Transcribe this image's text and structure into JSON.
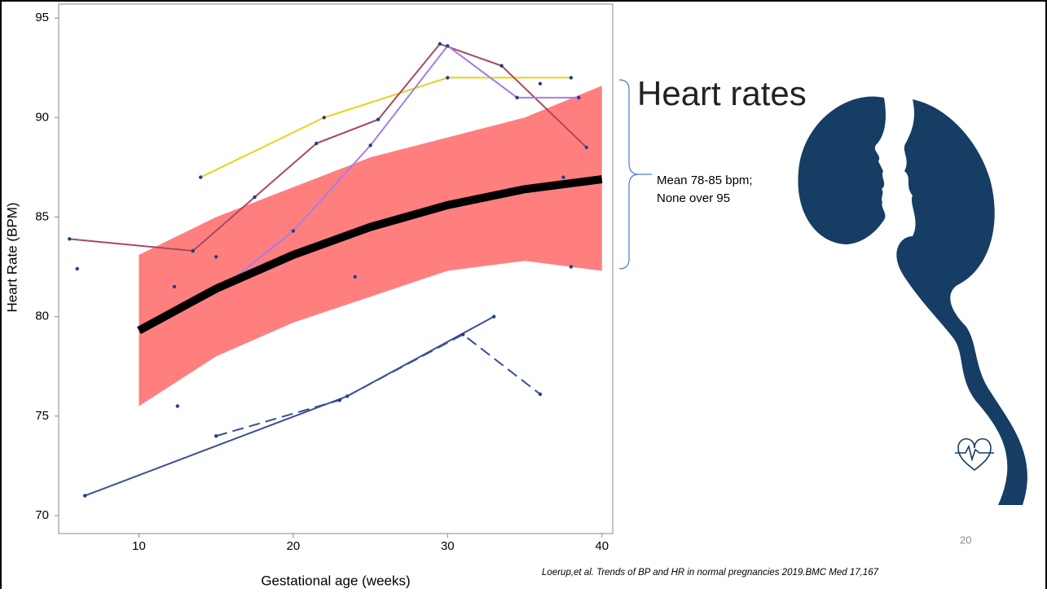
{
  "title": "Heart rates",
  "annotation": [
    "Mean 78-85 bpm;",
    "None over 95"
  ],
  "citation": "Loerup,et al. Trends of BP and HR in normal pregnancies 2019.BMC Med 17,167",
  "page_number": "20",
  "chart_data": {
    "type": "line",
    "x_label": "Gestational age (weeks)",
    "y_label": "Heart Rate (BPM)",
    "xlim": [
      4.8,
      40.7
    ],
    "ylim": [
      69.1,
      95.7
    ],
    "xticks": [
      10,
      20,
      30,
      40
    ],
    "yticks": [
      70,
      75,
      80,
      85,
      90,
      95
    ],
    "marker_color": "#1f3f8f",
    "series": [
      {
        "color": "#e8d21c",
        "dash": false,
        "x": [
          14,
          22,
          30,
          38
        ],
        "values": [
          87,
          90,
          92,
          92
        ]
      },
      {
        "color": "#a8495f",
        "dash": false,
        "x": [
          5.5,
          13.5,
          17.5,
          21.5,
          25.5,
          29.5,
          33.5,
          39
        ],
        "values": [
          83.9,
          83.3,
          86,
          88.7,
          89.9,
          93.7,
          92.6,
          88.5
        ]
      },
      {
        "color": "#a27ee6",
        "dash": false,
        "x": [
          15.8,
          20,
          25,
          30,
          34.5,
          38.5
        ],
        "values": [
          81.7,
          84.3,
          88.6,
          93.6,
          91,
          91
        ]
      },
      {
        "color": "#3b4f95",
        "dash": false,
        "x": [
          6.5,
          23.5,
          33
        ],
        "values": [
          71,
          76,
          80
        ]
      },
      {
        "color": "#3b4f95",
        "dash": true,
        "x": [
          15,
          23,
          31,
          36
        ],
        "values": [
          74,
          75.8,
          79.1,
          76.1
        ]
      }
    ],
    "points": {
      "x": [
        6,
        12.5,
        15,
        12.3,
        24,
        36,
        37.5,
        38
      ],
      "values": [
        82.4,
        75.5,
        83,
        81.5,
        82,
        91.7,
        87,
        82.5
      ]
    },
    "fit": {
      "color": "#000000",
      "x": [
        10,
        15,
        20,
        25,
        30,
        35,
        40
      ],
      "values": [
        79.3,
        81.4,
        83.1,
        84.5,
        85.6,
        86.4,
        86.9
      ],
      "upper": [
        83.1,
        85,
        86.5,
        88,
        89,
        90,
        91.6
      ],
      "lower": [
        75.5,
        78,
        79.7,
        81,
        82.3,
        82.8,
        82.3
      ],
      "band_color": "#ff7f7f"
    }
  }
}
